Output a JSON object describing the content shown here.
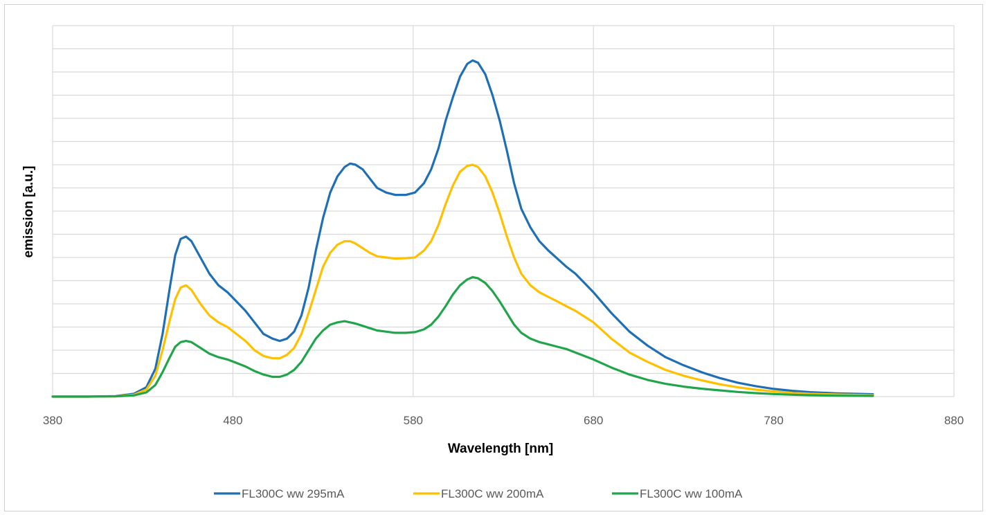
{
  "chart_data": {
    "type": "line",
    "title": "",
    "xlabel": "Wavelength [nm]",
    "ylabel": "emission [a.u.]",
    "xlim": [
      380,
      880
    ],
    "ylim": [
      0,
      16
    ],
    "x_ticks": [
      "380",
      "480",
      "580",
      "680",
      "780",
      "880"
    ],
    "y_tick_labels_shown": false,
    "grid": true,
    "legend_position": "bottom",
    "series": [
      {
        "name": "FL300C ww 295mA",
        "color": "#1f6fb5",
        "points": [
          [
            380,
            0
          ],
          [
            400,
            0
          ],
          [
            415,
            0.02
          ],
          [
            425,
            0.12
          ],
          [
            432,
            0.4
          ],
          [
            437,
            1.2
          ],
          [
            441,
            2.7
          ],
          [
            445,
            4.7
          ],
          [
            448,
            6.1
          ],
          [
            451,
            6.8
          ],
          [
            454,
            6.9
          ],
          [
            457,
            6.7
          ],
          [
            462,
            6.0
          ],
          [
            467,
            5.3
          ],
          [
            472,
            4.8
          ],
          [
            477,
            4.5
          ],
          [
            482,
            4.1
          ],
          [
            487,
            3.7
          ],
          [
            492,
            3.2
          ],
          [
            497,
            2.7
          ],
          [
            502,
            2.5
          ],
          [
            506,
            2.4
          ],
          [
            510,
            2.5
          ],
          [
            514,
            2.8
          ],
          [
            518,
            3.5
          ],
          [
            522,
            4.7
          ],
          [
            526,
            6.3
          ],
          [
            530,
            7.7
          ],
          [
            534,
            8.8
          ],
          [
            538,
            9.5
          ],
          [
            542,
            9.9
          ],
          [
            545,
            10.05
          ],
          [
            548,
            10.0
          ],
          [
            552,
            9.8
          ],
          [
            556,
            9.4
          ],
          [
            560,
            9.0
          ],
          [
            565,
            8.8
          ],
          [
            570,
            8.7
          ],
          [
            576,
            8.7
          ],
          [
            581,
            8.8
          ],
          [
            586,
            9.2
          ],
          [
            590,
            9.8
          ],
          [
            594,
            10.7
          ],
          [
            598,
            11.9
          ],
          [
            602,
            12.9
          ],
          [
            606,
            13.8
          ],
          [
            610,
            14.35
          ],
          [
            613,
            14.5
          ],
          [
            616,
            14.4
          ],
          [
            620,
            13.9
          ],
          [
            624,
            13.0
          ],
          [
            628,
            11.9
          ],
          [
            632,
            10.6
          ],
          [
            636,
            9.2
          ],
          [
            640,
            8.1
          ],
          [
            645,
            7.3
          ],
          [
            650,
            6.7
          ],
          [
            655,
            6.3
          ],
          [
            660,
            5.95
          ],
          [
            665,
            5.6
          ],
          [
            670,
            5.3
          ],
          [
            675,
            4.9
          ],
          [
            680,
            4.5
          ],
          [
            690,
            3.6
          ],
          [
            700,
            2.8
          ],
          [
            710,
            2.2
          ],
          [
            720,
            1.7
          ],
          [
            730,
            1.35
          ],
          [
            740,
            1.05
          ],
          [
            750,
            0.8
          ],
          [
            760,
            0.6
          ],
          [
            770,
            0.45
          ],
          [
            780,
            0.33
          ],
          [
            790,
            0.25
          ],
          [
            800,
            0.19
          ],
          [
            815,
            0.14
          ],
          [
            835,
            0.1
          ]
        ]
      },
      {
        "name": "FL300C ww 200mA",
        "color": "#ffc000",
        "points": [
          [
            380,
            0
          ],
          [
            400,
            0
          ],
          [
            415,
            0.01
          ],
          [
            425,
            0.08
          ],
          [
            432,
            0.3
          ],
          [
            437,
            0.9
          ],
          [
            441,
            2.0
          ],
          [
            445,
            3.3
          ],
          [
            448,
            4.2
          ],
          [
            451,
            4.7
          ],
          [
            454,
            4.8
          ],
          [
            457,
            4.6
          ],
          [
            462,
            4.0
          ],
          [
            467,
            3.5
          ],
          [
            472,
            3.2
          ],
          [
            477,
            3.0
          ],
          [
            482,
            2.7
          ],
          [
            487,
            2.4
          ],
          [
            492,
            2.0
          ],
          [
            497,
            1.75
          ],
          [
            502,
            1.65
          ],
          [
            506,
            1.65
          ],
          [
            510,
            1.8
          ],
          [
            514,
            2.1
          ],
          [
            518,
            2.7
          ],
          [
            522,
            3.6
          ],
          [
            526,
            4.6
          ],
          [
            530,
            5.6
          ],
          [
            534,
            6.2
          ],
          [
            538,
            6.55
          ],
          [
            542,
            6.7
          ],
          [
            545,
            6.7
          ],
          [
            548,
            6.6
          ],
          [
            552,
            6.4
          ],
          [
            556,
            6.2
          ],
          [
            560,
            6.05
          ],
          [
            565,
            6.0
          ],
          [
            570,
            5.95
          ],
          [
            576,
            5.97
          ],
          [
            581,
            6.0
          ],
          [
            586,
            6.3
          ],
          [
            590,
            6.7
          ],
          [
            594,
            7.4
          ],
          [
            598,
            8.3
          ],
          [
            602,
            9.1
          ],
          [
            606,
            9.7
          ],
          [
            610,
            9.95
          ],
          [
            613,
            10.0
          ],
          [
            616,
            9.9
          ],
          [
            620,
            9.5
          ],
          [
            624,
            8.8
          ],
          [
            628,
            7.9
          ],
          [
            632,
            6.9
          ],
          [
            636,
            6.0
          ],
          [
            640,
            5.3
          ],
          [
            645,
            4.8
          ],
          [
            650,
            4.5
          ],
          [
            655,
            4.3
          ],
          [
            660,
            4.1
          ],
          [
            665,
            3.9
          ],
          [
            670,
            3.7
          ],
          [
            675,
            3.45
          ],
          [
            680,
            3.2
          ],
          [
            690,
            2.5
          ],
          [
            700,
            1.9
          ],
          [
            710,
            1.5
          ],
          [
            720,
            1.15
          ],
          [
            730,
            0.9
          ],
          [
            740,
            0.7
          ],
          [
            750,
            0.53
          ],
          [
            760,
            0.4
          ],
          [
            770,
            0.3
          ],
          [
            780,
            0.22
          ],
          [
            790,
            0.16
          ],
          [
            800,
            0.12
          ],
          [
            815,
            0.09
          ],
          [
            835,
            0.06
          ]
        ]
      },
      {
        "name": "FL300C ww 100mA",
        "color": "#21a54a",
        "points": [
          [
            380,
            0
          ],
          [
            400,
            0
          ],
          [
            415,
            0.01
          ],
          [
            425,
            0.05
          ],
          [
            432,
            0.18
          ],
          [
            437,
            0.5
          ],
          [
            441,
            1.05
          ],
          [
            445,
            1.7
          ],
          [
            448,
            2.15
          ],
          [
            451,
            2.35
          ],
          [
            454,
            2.4
          ],
          [
            457,
            2.35
          ],
          [
            462,
            2.1
          ],
          [
            467,
            1.85
          ],
          [
            472,
            1.7
          ],
          [
            477,
            1.6
          ],
          [
            482,
            1.45
          ],
          [
            487,
            1.3
          ],
          [
            492,
            1.1
          ],
          [
            497,
            0.95
          ],
          [
            502,
            0.85
          ],
          [
            506,
            0.85
          ],
          [
            510,
            0.95
          ],
          [
            514,
            1.15
          ],
          [
            518,
            1.5
          ],
          [
            522,
            2.0
          ],
          [
            526,
            2.5
          ],
          [
            530,
            2.85
          ],
          [
            534,
            3.1
          ],
          [
            538,
            3.2
          ],
          [
            542,
            3.25
          ],
          [
            545,
            3.2
          ],
          [
            548,
            3.15
          ],
          [
            552,
            3.05
          ],
          [
            556,
            2.95
          ],
          [
            560,
            2.85
          ],
          [
            565,
            2.8
          ],
          [
            570,
            2.75
          ],
          [
            576,
            2.75
          ],
          [
            581,
            2.78
          ],
          [
            586,
            2.9
          ],
          [
            590,
            3.1
          ],
          [
            594,
            3.45
          ],
          [
            598,
            3.9
          ],
          [
            602,
            4.4
          ],
          [
            606,
            4.8
          ],
          [
            610,
            5.05
          ],
          [
            613,
            5.15
          ],
          [
            616,
            5.1
          ],
          [
            620,
            4.9
          ],
          [
            624,
            4.55
          ],
          [
            628,
            4.1
          ],
          [
            632,
            3.6
          ],
          [
            636,
            3.1
          ],
          [
            640,
            2.75
          ],
          [
            645,
            2.5
          ],
          [
            650,
            2.35
          ],
          [
            655,
            2.25
          ],
          [
            660,
            2.15
          ],
          [
            665,
            2.05
          ],
          [
            670,
            1.9
          ],
          [
            675,
            1.75
          ],
          [
            680,
            1.6
          ],
          [
            690,
            1.25
          ],
          [
            700,
            0.95
          ],
          [
            710,
            0.72
          ],
          [
            720,
            0.55
          ],
          [
            730,
            0.43
          ],
          [
            740,
            0.34
          ],
          [
            750,
            0.27
          ],
          [
            760,
            0.2
          ],
          [
            770,
            0.15
          ],
          [
            780,
            0.11
          ],
          [
            790,
            0.08
          ],
          [
            800,
            0.06
          ],
          [
            815,
            0.04
          ],
          [
            835,
            0.03
          ]
        ]
      }
    ]
  }
}
